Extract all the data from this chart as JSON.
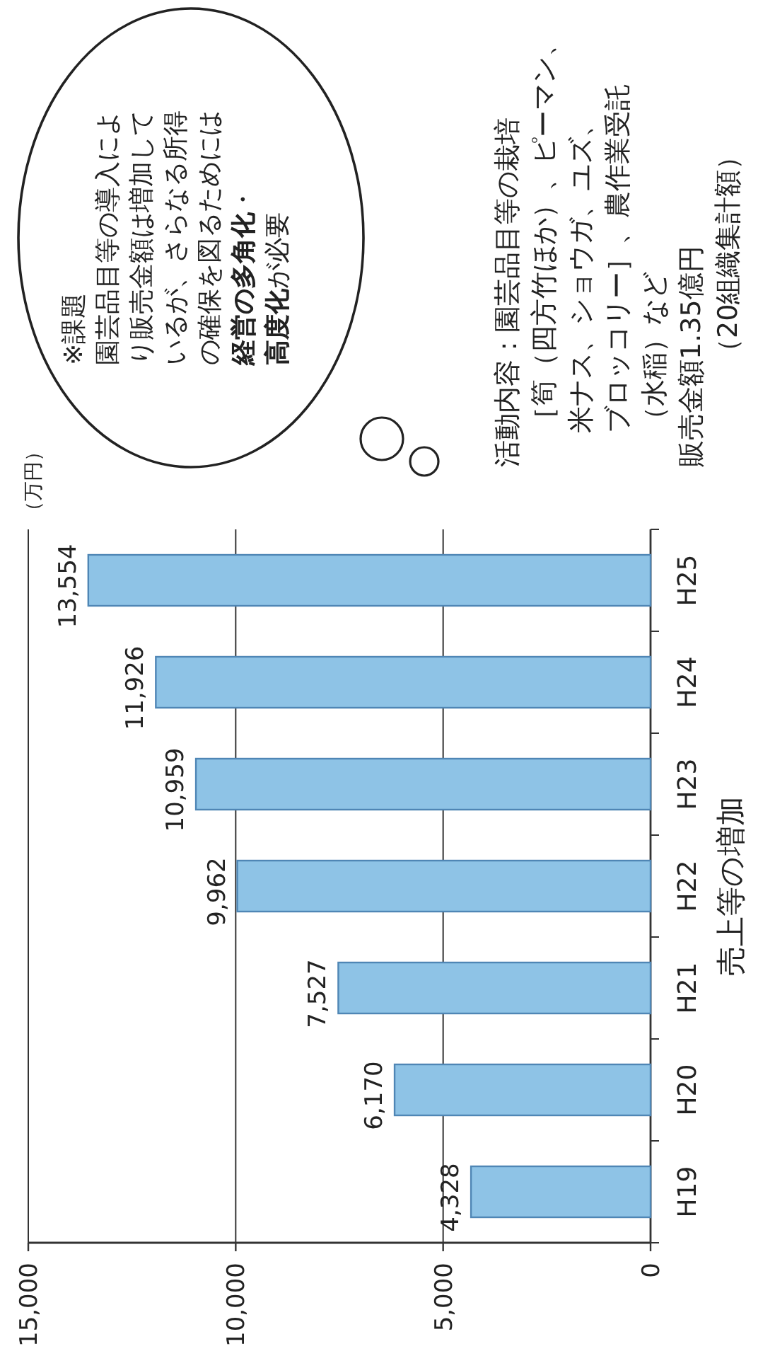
{
  "chart_data": {
    "type": "bar",
    "orientation": "horizontal",
    "title": "売上等の増加",
    "categories": [
      "H25",
      "H24",
      "H23",
      "H22",
      "H21",
      "H20",
      "H19"
    ],
    "values": [
      13554,
      11926,
      10959,
      9962,
      7527,
      6170,
      4328
    ],
    "value_labels": [
      "13,554",
      "11,926",
      "10,959",
      "9,962",
      "7,527",
      "6,170",
      "4,328"
    ],
    "color": "#8ec3e6",
    "xlim": [
      15000,
      0
    ],
    "xticks": [
      {
        "value": 15000,
        "label": "15,000"
      },
      {
        "value": 10000,
        "label": "10,000"
      },
      {
        "value": 5000,
        "label": "5,000"
      },
      0
    ],
    "grid": "x",
    "annotations": [
      "（万円）",
      "※課題",
      "園芸品目等の導入によ",
      "り販売金額は増加して",
      "いるが、さらなる所得",
      "の確保を図るためには",
      "**経営の多角化**・",
      "**高度化**が必要",
      "活動内容：園芸品目等の栽培",
      "［筍（四方竹ほか）、ピーマン、",
      "米ナス、ショウガ、ユズ、",
      "ブロッコリー］、農作業受託",
      "（水稲）など",
      "販売金額1.35億円",
      "（20組織集計額）"
    ]
  }
}
